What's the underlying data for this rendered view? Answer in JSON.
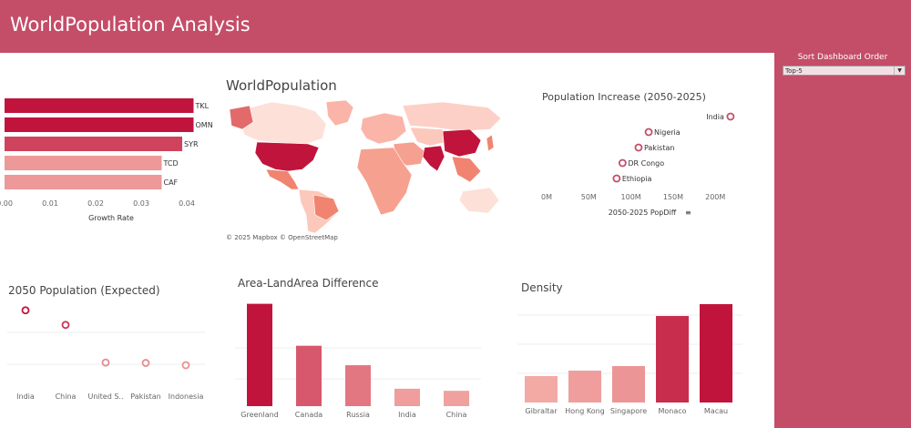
{
  "header": {
    "title": "WorldPopulation Analysis"
  },
  "sidebar": {
    "sort_label": "Sort Dashboard Order",
    "sort_value": "Top-5"
  },
  "colors": {
    "banner": "#c44d68",
    "dark_red": "#c0143c",
    "mid_red": "#e8505b",
    "light_pink": "#fbb4a8"
  },
  "growth_chart": {
    "chart_data": {
      "type": "bar",
      "orientation": "horizontal",
      "categories": [
        "TKL",
        "OMN",
        "SYR",
        "TCD",
        "CAF"
      ],
      "values": [
        0.0415,
        0.0415,
        0.039,
        0.0345,
        0.0345
      ],
      "xlabel": "Growth Rate",
      "xticks": [
        "0.00",
        "0.01",
        "0.02",
        "0.03",
        "0.04"
      ],
      "xlim": [
        0,
        0.045
      ]
    }
  },
  "map_panel": {
    "title": "WorldPopulation",
    "credit": "© 2025 Mapbox © OpenStreetMap"
  },
  "increase_chart": {
    "chart_data": {
      "type": "scatter",
      "title": "Population Increase (2050-2025)",
      "categories": [
        "India",
        "Nigeria",
        "Pakistan",
        "DR Congo",
        "Ethiopia"
      ],
      "values": [
        218,
        121,
        109,
        90,
        83
      ],
      "xlabel": "2050-2025 PopDiff",
      "xticks": [
        "0M",
        "50M",
        "100M",
        "150M",
        "200M"
      ],
      "xlim": [
        0,
        230
      ]
    }
  },
  "pop2050_chart": {
    "chart_data": {
      "type": "scatter",
      "title": "2050 Population (Expected)",
      "categories": [
        "India",
        "China",
        "United S..",
        "Pakistan",
        "Indonesia"
      ],
      "values": [
        1670,
        1310,
        380,
        370,
        315
      ],
      "ylim": [
        0,
        1800
      ]
    }
  },
  "area_chart": {
    "chart_data": {
      "type": "bar",
      "title": "Area-LandArea Difference",
      "categories": [
        "Greenland",
        "Canada",
        "Russia",
        "India",
        "China"
      ],
      "values": [
        1.0,
        0.59,
        0.4,
        0.17,
        0.15
      ],
      "ylim": [
        0,
        1.05
      ]
    }
  },
  "density_chart": {
    "chart_data": {
      "type": "bar",
      "title": "Density",
      "categories": [
        "Gibraltar",
        "Hong Kong",
        "Singapore",
        "Monaco",
        "Macau"
      ],
      "values": [
        2.9,
        3.5,
        4.0,
        9.5,
        10.8
      ],
      "ylim": [
        0,
        11
      ]
    }
  }
}
